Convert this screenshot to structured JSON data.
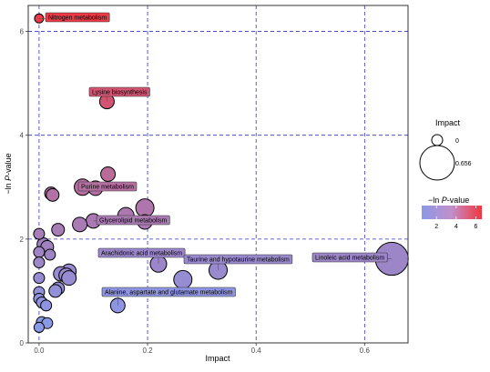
{
  "chart_data": {
    "type": "scatter",
    "xlabel": "Impact",
    "ylabel": "-ln P-value",
    "ylabel_parts": [
      "−ln ",
      "P",
      "-value"
    ],
    "xlim": [
      -0.02,
      0.68
    ],
    "ylim": [
      0,
      6.5
    ],
    "x_ticks": [
      0.0,
      0.2,
      0.4,
      0.6
    ],
    "x_tick_labels": [
      "0.0",
      "0.2",
      "0.4",
      "0.6"
    ],
    "y_ticks": [
      0,
      2,
      4,
      6
    ],
    "y_tick_labels": [
      "0",
      "2",
      "4",
      "6"
    ],
    "grid": {
      "style": "dashed",
      "color": "#3333cc"
    },
    "color_scale": {
      "low": "#8a98e6",
      "high": "#f2353d",
      "min": 0.5,
      "max": 6.6
    },
    "points": [
      {
        "x": 0.0,
        "y": 6.25,
        "impact": 0.0,
        "label": "Nitrogen metabolism"
      },
      {
        "x": 0.125,
        "y": 4.65,
        "impact": 0.15,
        "label": "Lysine biosynthesis"
      },
      {
        "x": 0.127,
        "y": 3.25,
        "impact": 0.15
      },
      {
        "x": 0.08,
        "y": 3.0,
        "impact": 0.2,
        "label": "Purine metabolism"
      },
      {
        "x": 0.104,
        "y": 2.98,
        "impact": 0.15
      },
      {
        "x": 0.022,
        "y": 2.88,
        "impact": 0.1
      },
      {
        "x": 0.025,
        "y": 2.85,
        "impact": 0.1
      },
      {
        "x": 0.195,
        "y": 2.6,
        "impact": 0.25
      },
      {
        "x": 0.16,
        "y": 2.45,
        "impact": 0.2
      },
      {
        "x": 0.195,
        "y": 2.33,
        "impact": 0.15
      },
      {
        "x": 0.1,
        "y": 2.35,
        "impact": 0.15,
        "label": "Glycerolipid metabolism"
      },
      {
        "x": 0.075,
        "y": 2.28,
        "impact": 0.15
      },
      {
        "x": 0.035,
        "y": 2.18,
        "impact": 0.1
      },
      {
        "x": 0.0,
        "y": 2.1,
        "impact": 0.05
      },
      {
        "x": 0.008,
        "y": 1.9,
        "impact": 0.1
      },
      {
        "x": 0.015,
        "y": 1.85,
        "impact": 0.1
      },
      {
        "x": 0.0,
        "y": 1.75,
        "impact": 0.05
      },
      {
        "x": 0.02,
        "y": 1.7,
        "impact": 0.05
      },
      {
        "x": 0.0,
        "y": 1.55,
        "impact": 0.05
      },
      {
        "x": 0.22,
        "y": 1.52,
        "impact": 0.2,
        "label": "Arachidonic acid metabolism"
      },
      {
        "x": 0.65,
        "y": 1.62,
        "impact": 0.656,
        "label": "Linoleic acid metabolism"
      },
      {
        "x": 0.33,
        "y": 1.4,
        "impact": 0.25,
        "label": "Taurine and hypotaurine metabolism"
      },
      {
        "x": 0.055,
        "y": 1.38,
        "impact": 0.15
      },
      {
        "x": 0.04,
        "y": 1.33,
        "impact": 0.15
      },
      {
        "x": 0.05,
        "y": 1.3,
        "impact": 0.15
      },
      {
        "x": 0.055,
        "y": 1.25,
        "impact": 0.15
      },
      {
        "x": 0.0,
        "y": 1.25,
        "impact": 0.05
      },
      {
        "x": 0.265,
        "y": 1.22,
        "impact": 0.25
      },
      {
        "x": 0.035,
        "y": 1.05,
        "impact": 0.1
      },
      {
        "x": 0.03,
        "y": 1.0,
        "impact": 0.1
      },
      {
        "x": 0.0,
        "y": 0.98,
        "impact": 0.05
      },
      {
        "x": 0.0,
        "y": 0.85,
        "impact": 0.05
      },
      {
        "x": 0.005,
        "y": 0.78,
        "impact": 0.05
      },
      {
        "x": 0.013,
        "y": 0.72,
        "impact": 0.05
      },
      {
        "x": 0.145,
        "y": 0.72,
        "impact": 0.15,
        "label": "Alanine, aspartate and glutamate metabolism"
      },
      {
        "x": 0.005,
        "y": 0.4,
        "impact": 0.05
      },
      {
        "x": 0.015,
        "y": 0.38,
        "impact": 0.05
      },
      {
        "x": 0.0,
        "y": 0.3,
        "impact": 0.03
      }
    ],
    "legend_size": {
      "title": "Impact",
      "items": [
        {
          "label": "0",
          "value": 0.0
        },
        {
          "label": "0.656",
          "value": 0.656
        }
      ]
    },
    "legend_color": {
      "title_parts": [
        "−ln ",
        "P",
        "-value"
      ],
      "ticks": [
        2,
        4,
        6
      ],
      "tick_labels": [
        "2",
        "4",
        "6"
      ]
    }
  }
}
